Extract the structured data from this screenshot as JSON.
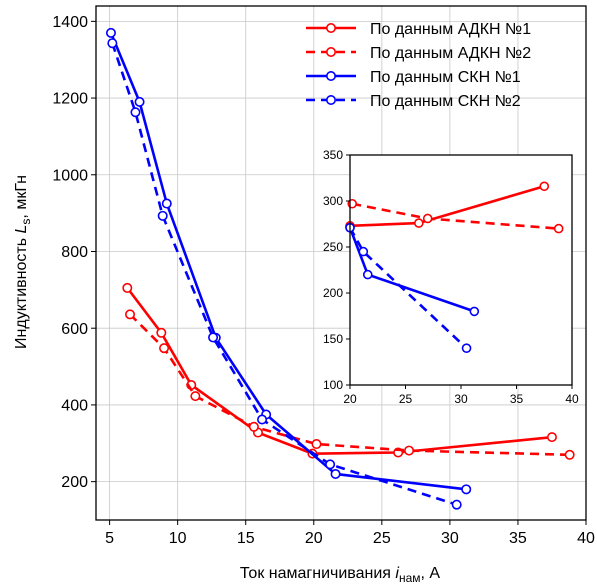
{
  "chart_data": [
    {
      "type": "line",
      "title": "",
      "xlabel_main": "Ток намагничивания ",
      "xlabel_var": "i",
      "xlabel_sub": "нам",
      "xlabel_unit": ",  А",
      "ylabel_main": "Индуктивность ",
      "ylabel_var": "L",
      "ylabel_sub": "s",
      "ylabel_unit": ",  мкГн",
      "xlim": [
        4,
        40
      ],
      "ylim": [
        100,
        1440
      ],
      "xticks": [
        5,
        10,
        15,
        20,
        25,
        30,
        35,
        40
      ],
      "yticks": [
        200,
        400,
        600,
        800,
        1000,
        1200,
        1400
      ],
      "grid": true,
      "legend_position": "top-right",
      "series": [
        {
          "name": "По данным АДКН №1",
          "color": "#ff0000",
          "dashed": false,
          "x": [
            6.3,
            8.8,
            11.0,
            15.9,
            19.9,
            26.2,
            37.5
          ],
          "y": [
            705,
            588,
            452,
            328,
            273,
            276,
            316
          ]
        },
        {
          "name": "По данным АДКН №2",
          "color": "#ff0000",
          "dashed": true,
          "x": [
            6.5,
            9.0,
            11.3,
            15.6,
            20.2,
            27.0,
            38.8
          ],
          "y": [
            636,
            548,
            423,
            343,
            298,
            281,
            270
          ]
        },
        {
          "name": "По данным СКН №1",
          "color": "#0000ff",
          "dashed": false,
          "x": [
            5.1,
            7.2,
            9.2,
            12.8,
            16.5,
            21.6,
            31.2
          ],
          "y": [
            1370,
            1190,
            925,
            575,
            375,
            220,
            180
          ]
        },
        {
          "name": "По данным СКН №2",
          "color": "#0000ff",
          "dashed": true,
          "x": [
            5.2,
            6.9,
            8.9,
            12.6,
            16.2,
            21.2,
            30.5
          ],
          "y": [
            1343,
            1163,
            893,
            576,
            362,
            245,
            140
          ]
        }
      ]
    },
    {
      "type": "line",
      "title": "",
      "note": "inset",
      "xlim": [
        20,
        40
      ],
      "ylim": [
        100,
        350
      ],
      "xticks": [
        20,
        25,
        30,
        35,
        40
      ],
      "yticks": [
        100,
        150,
        200,
        250,
        300,
        350
      ],
      "grid": false,
      "series": [
        {
          "color": "#ff0000",
          "dashed": false,
          "x": [
            20.0,
            26.2,
            37.5
          ],
          "y": [
            273,
            276,
            316
          ]
        },
        {
          "color": "#ff0000",
          "dashed": true,
          "x": [
            20.2,
            27.0,
            38.8
          ],
          "y": [
            297,
            281,
            270
          ]
        },
        {
          "color": "#0000ff",
          "dashed": false,
          "x": [
            20.0,
            21.6,
            31.2
          ],
          "y": [
            271,
            220,
            180
          ]
        },
        {
          "color": "#0000ff",
          "dashed": true,
          "x": [
            20.0,
            21.2,
            30.5
          ],
          "y": [
            271,
            245,
            140
          ]
        }
      ]
    }
  ]
}
